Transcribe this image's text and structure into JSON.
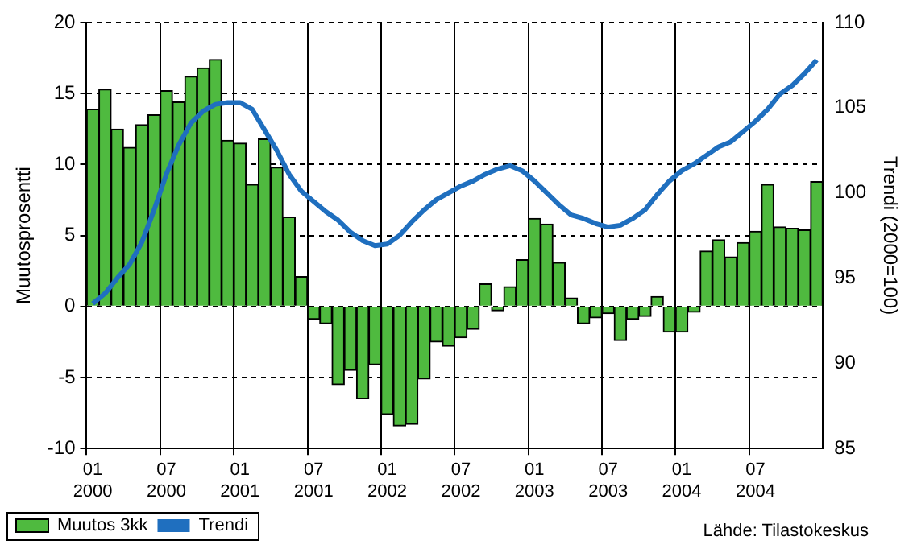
{
  "chart_data": {
    "type": "bar",
    "ylabel": "Muutosprosentti",
    "y2label": "Trendi (2000=100)",
    "categories": [
      "01 2000",
      null,
      null,
      null,
      null,
      null,
      "07 2000",
      null,
      null,
      null,
      null,
      null,
      "01 2001",
      null,
      null,
      null,
      null,
      null,
      "07 2001",
      null,
      null,
      null,
      null,
      null,
      "01 2002",
      null,
      null,
      null,
      null,
      null,
      "07 2002",
      null,
      null,
      null,
      null,
      null,
      "01 2003",
      null,
      null,
      null,
      null,
      null,
      "07 2003",
      null,
      null,
      null,
      null,
      null,
      "01 2004",
      null,
      null,
      null,
      null,
      null,
      "07 2004",
      null,
      null,
      null,
      null,
      null
    ],
    "series": [
      {
        "name": "Muutos 3kk",
        "color": "#4fba3f",
        "values": [
          13.9,
          15.3,
          12.5,
          11.2,
          12.8,
          13.5,
          15.2,
          14.4,
          16.2,
          16.8,
          17.4,
          11.7,
          11.5,
          8.6,
          11.8,
          9.8,
          6.3,
          2.1,
          -0.9,
          -1.2,
          -5.5,
          -4.5,
          -6.5,
          -4.1,
          -7.6,
          -8.4,
          -8.3,
          -5.1,
          -2.5,
          -2.8,
          -2.2,
          -1.6,
          1.6,
          -0.3,
          1.4,
          3.3,
          6.2,
          5.8,
          3.1,
          0.6,
          -1.2,
          -0.8,
          -0.5,
          -2.4,
          -0.9,
          -0.7,
          0.7,
          -1.8,
          -1.8,
          -0.4,
          3.9,
          4.7,
          3.5,
          4.5,
          5.3,
          8.6,
          5.6,
          5.5,
          5.4,
          8.8
        ]
      },
      {
        "name": "Trendi",
        "type": "line",
        "axis": "y2",
        "color": "#1f6fbf",
        "values": [
          93.5,
          94.1,
          95.0,
          95.8,
          97.1,
          99.0,
          101.1,
          102.8,
          104.1,
          104.8,
          105.2,
          105.3,
          105.3,
          104.9,
          103.7,
          102.5,
          101.1,
          100.1,
          99.5,
          98.9,
          98.4,
          97.7,
          97.2,
          96.9,
          97.0,
          97.5,
          98.3,
          99.0,
          99.6,
          100.0,
          100.4,
          100.7,
          101.1,
          101.4,
          101.6,
          101.3,
          100.7,
          100.0,
          99.3,
          98.7,
          98.5,
          98.2,
          98.0,
          98.1,
          98.5,
          99.0,
          99.9,
          100.7,
          101.3,
          101.7,
          102.2,
          102.7,
          103.0,
          103.6,
          104.2,
          104.9,
          105.8,
          106.3,
          107.0,
          107.8
        ]
      }
    ],
    "ylim": [
      -10,
      20
    ],
    "yticks": [
      -10,
      -5,
      0,
      5,
      10,
      15,
      20
    ],
    "y2lim": [
      85,
      110
    ],
    "y2ticks": [
      85,
      90,
      95,
      100,
      105,
      110
    ],
    "grid": true,
    "legend": "bottom left",
    "marker": "none",
    "line_style": "solid",
    "annotations": [
      "Lähde: Tilastokeskus"
    ]
  }
}
